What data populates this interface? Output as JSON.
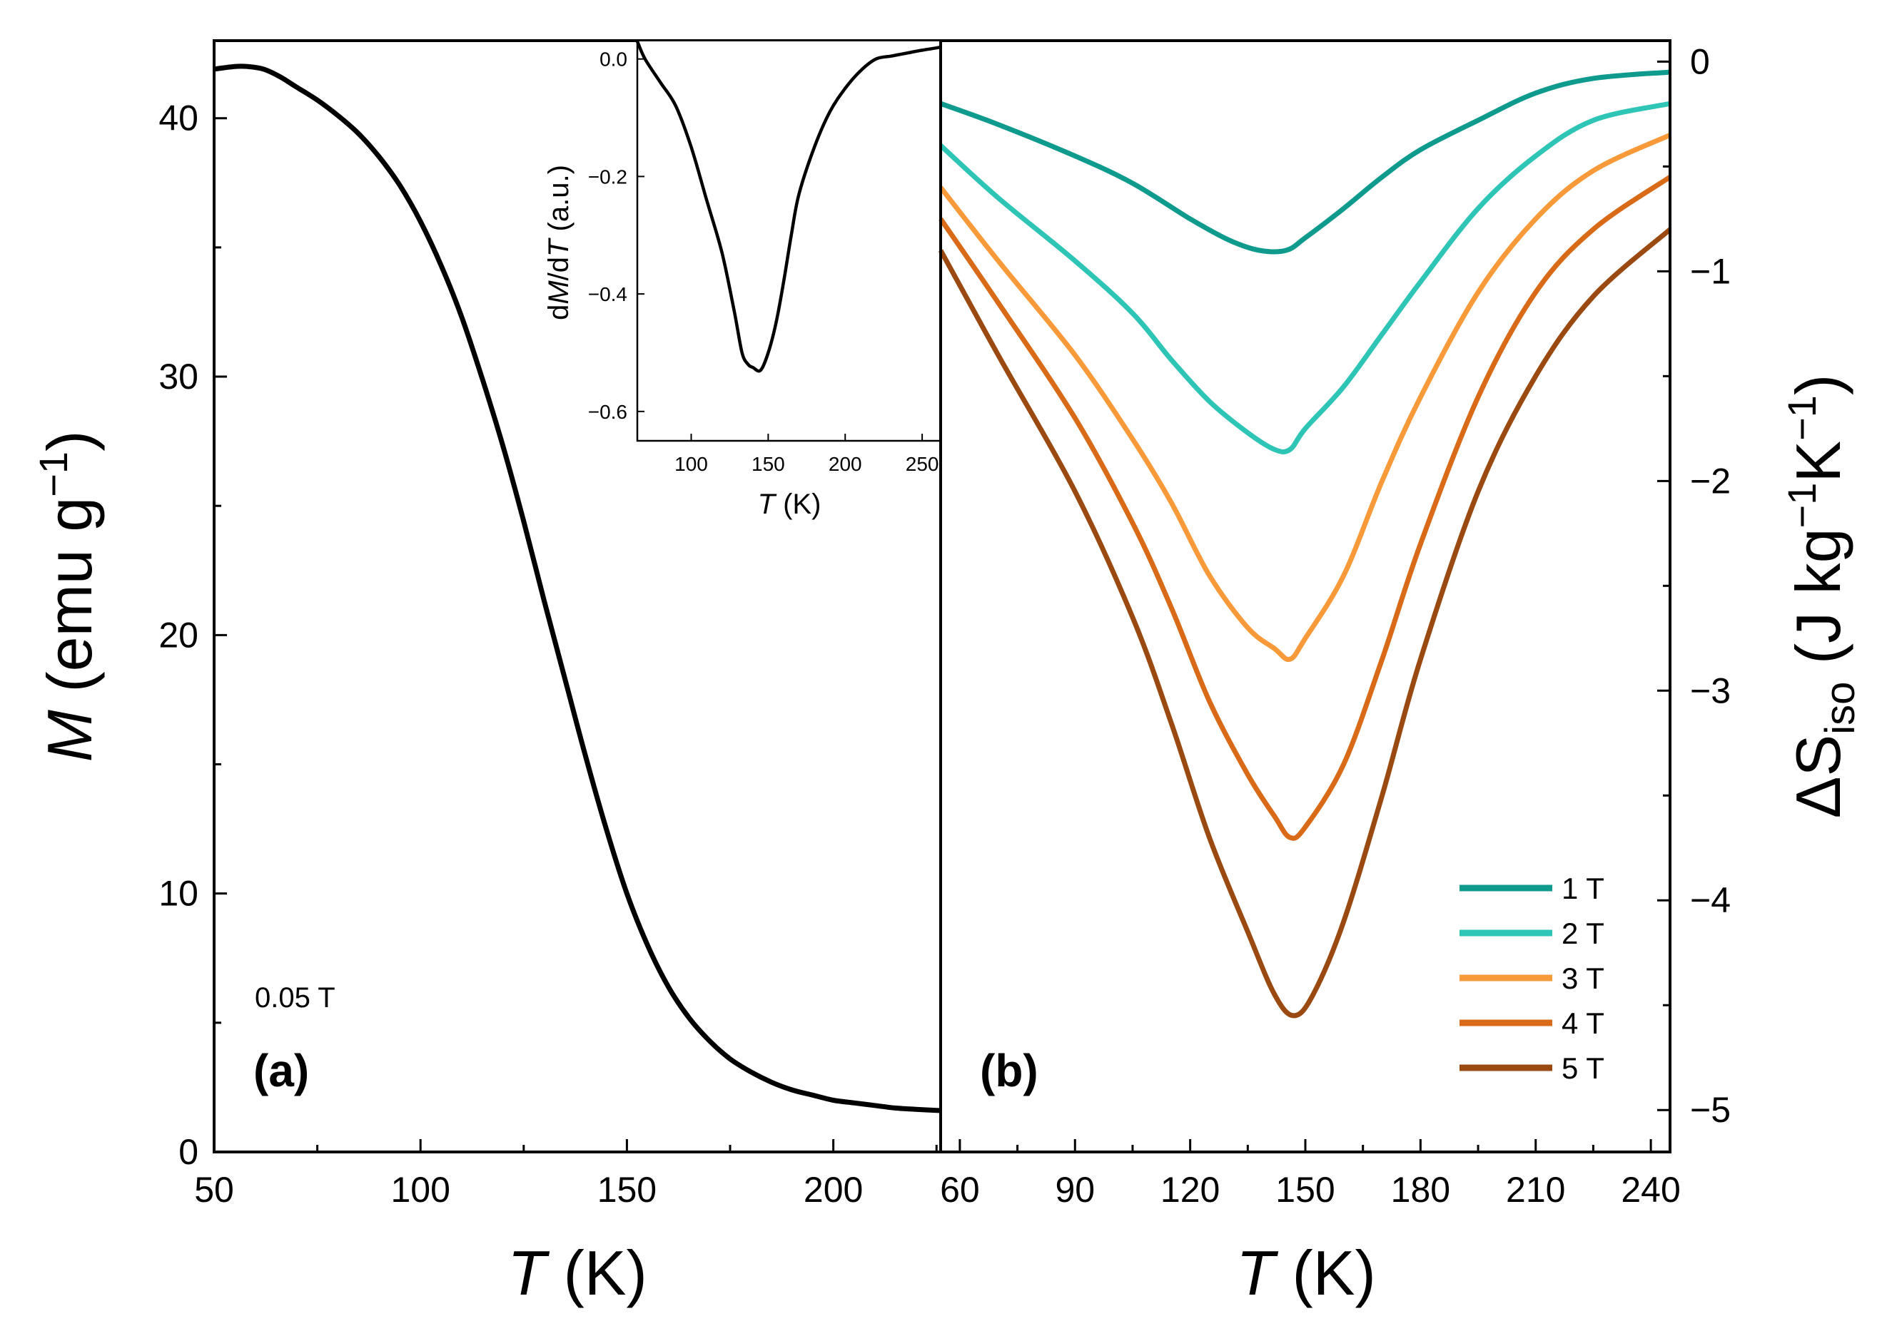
{
  "chart_data": [
    {
      "panel": "(a)",
      "type": "line",
      "title": "",
      "xlabel": {
        "var": "T",
        "unit": " (K)"
      },
      "ylabel": {
        "var": "M",
        "unit": " (emu g",
        "sup": "−1",
        "close": ")"
      },
      "xlim": [
        50,
        226
      ],
      "ylim": [
        0,
        43
      ],
      "xticks": [
        50,
        100,
        150,
        200
      ],
      "xticklabels": [
        "50",
        "100",
        "150",
        "200"
      ],
      "yticks": [
        0,
        10,
        20,
        30,
        40
      ],
      "yticklabels": [
        "0",
        "10",
        "20",
        "30",
        "40"
      ],
      "annotation": "0.05 T",
      "color": "#000000",
      "series": [
        {
          "name": "M(T)",
          "x": [
            50,
            55,
            58,
            62,
            66,
            70,
            75,
            80,
            85,
            90,
            95,
            100,
            105,
            110,
            115,
            120,
            125,
            130,
            135,
            140,
            145,
            150,
            155,
            160,
            165,
            170,
            175,
            180,
            185,
            190,
            195,
            200,
            205,
            210,
            215,
            220,
            226
          ],
          "y": [
            41.9,
            42.0,
            42.0,
            41.9,
            41.6,
            41.2,
            40.7,
            40.1,
            39.4,
            38.5,
            37.4,
            36.0,
            34.3,
            32.3,
            29.9,
            27.3,
            24.4,
            21.3,
            18.3,
            15.3,
            12.5,
            10.0,
            8.0,
            6.4,
            5.2,
            4.3,
            3.6,
            3.1,
            2.7,
            2.4,
            2.2,
            2.0,
            1.9,
            1.8,
            1.7,
            1.65,
            1.6
          ]
        }
      ]
    },
    {
      "panel": "inset",
      "type": "line",
      "xlabel": {
        "var": "T",
        "unit": " (K)"
      },
      "ylabel": {
        "pre": "d",
        "var1": "M",
        "mid": "/d",
        "var2": "T",
        "unit": " (a.u.)"
      },
      "xlim": [
        65,
        262
      ],
      "ylim": [
        -0.65,
        0.03
      ],
      "xticks": [
        100,
        150,
        200,
        250
      ],
      "xticklabels": [
        "100",
        "150",
        "200",
        "250"
      ],
      "yticks": [
        0.0,
        -0.2,
        -0.4,
        -0.6
      ],
      "yticklabels": [
        "0.0",
        "−0.2",
        "−0.4",
        "−0.6"
      ],
      "color": "#000000",
      "series": [
        {
          "name": "dM/dT",
          "x": [
            65,
            70,
            80,
            90,
            100,
            110,
            120,
            128,
            133,
            137,
            140,
            145,
            150,
            155,
            160,
            165,
            170,
            180,
            190,
            200,
            210,
            220,
            230,
            240,
            250,
            262
          ],
          "y": [
            0.03,
            0.0,
            -0.04,
            -0.08,
            -0.15,
            -0.24,
            -0.33,
            -0.43,
            -0.5,
            -0.52,
            -0.525,
            -0.53,
            -0.5,
            -0.45,
            -0.38,
            -0.3,
            -0.23,
            -0.15,
            -0.09,
            -0.05,
            -0.02,
            0.0,
            0.005,
            0.01,
            0.015,
            0.02
          ]
        }
      ]
    },
    {
      "panel": "(b)",
      "type": "line",
      "xlabel": {
        "var": "T",
        "unit": " (K)"
      },
      "ylabel": {
        "pre": "ΔS",
        "sub": "iso",
        "unit": " (J kg",
        "sup1": "−1",
        "mid": "K",
        "sup2": "−1",
        "close": ")"
      },
      "xlim": [
        55,
        245
      ],
      "ylim": [
        -5.2,
        0.1
      ],
      "xticks": [
        60,
        90,
        120,
        150,
        180,
        210,
        240
      ],
      "xticklabels": [
        "60",
        "90",
        "120",
        "150",
        "180",
        "210",
        "240"
      ],
      "yticks": [
        0,
        -1,
        -2,
        -3,
        -4,
        -5
      ],
      "yticklabels": [
        "0",
        "−1",
        "−2",
        "−3",
        "−4",
        "−5"
      ],
      "legend_position": "bottom-right",
      "series": [
        {
          "name": "1 T",
          "color": "#0e9b8e",
          "x": [
            55,
            70,
            90,
            105,
            120,
            130,
            138,
            145,
            150,
            160,
            170,
            180,
            195,
            210,
            225,
            245
          ],
          "y": [
            -0.2,
            -0.3,
            -0.45,
            -0.58,
            -0.75,
            -0.85,
            -0.9,
            -0.9,
            -0.84,
            -0.7,
            -0.55,
            -0.42,
            -0.28,
            -0.15,
            -0.08,
            -0.05
          ]
        },
        {
          "name": "2 T",
          "color": "#2ec4b6",
          "x": [
            55,
            70,
            90,
            105,
            115,
            125,
            135,
            142,
            146,
            150,
            160,
            170,
            180,
            195,
            210,
            225,
            245
          ],
          "y": [
            -0.4,
            -0.65,
            -0.95,
            -1.2,
            -1.42,
            -1.62,
            -1.77,
            -1.85,
            -1.85,
            -1.75,
            -1.55,
            -1.3,
            -1.05,
            -0.7,
            -0.45,
            -0.28,
            -0.2
          ]
        },
        {
          "name": "3 T",
          "color": "#f89a3a",
          "x": [
            55,
            70,
            90,
            105,
            115,
            125,
            135,
            142,
            146,
            150,
            160,
            170,
            180,
            195,
            210,
            225,
            245
          ],
          "y": [
            -0.6,
            -0.95,
            -1.4,
            -1.8,
            -2.1,
            -2.45,
            -2.7,
            -2.8,
            -2.85,
            -2.75,
            -2.45,
            -2.0,
            -1.6,
            -1.1,
            -0.75,
            -0.52,
            -0.35
          ]
        },
        {
          "name": "4 T",
          "color": "#d96a17",
          "x": [
            55,
            70,
            90,
            105,
            115,
            125,
            135,
            142,
            146,
            150,
            160,
            170,
            180,
            195,
            210,
            225,
            245
          ],
          "y": [
            -0.75,
            -1.15,
            -1.7,
            -2.2,
            -2.6,
            -3.05,
            -3.4,
            -3.6,
            -3.7,
            -3.65,
            -3.35,
            -2.85,
            -2.3,
            -1.6,
            -1.1,
            -0.8,
            -0.55
          ]
        },
        {
          "name": "5 T",
          "color": "#9a4a10",
          "x": [
            55,
            70,
            90,
            105,
            115,
            125,
            135,
            142,
            147,
            152,
            160,
            170,
            180,
            195,
            210,
            225,
            245
          ],
          "y": [
            -0.9,
            -1.4,
            -2.05,
            -2.65,
            -3.15,
            -3.7,
            -4.15,
            -4.45,
            -4.55,
            -4.45,
            -4.1,
            -3.5,
            -2.85,
            -2.05,
            -1.5,
            -1.12,
            -0.8
          ]
        }
      ]
    }
  ]
}
